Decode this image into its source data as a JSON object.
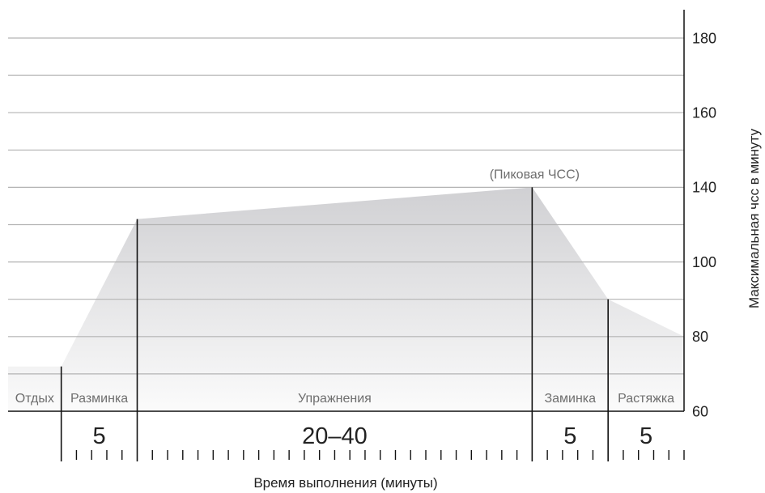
{
  "chart_data": {
    "type": "area",
    "xlabel": "Время выполнения (минуты)",
    "ylabel": "Максимальная чсс в минуту",
    "y_axis_side": "right",
    "y_ticks": [
      60,
      80,
      100,
      140,
      160,
      180
    ],
    "grid": true,
    "phases": [
      {
        "label": "Отдых",
        "minutes": 3.5
      },
      {
        "label": "Разминка",
        "duration_label": "5",
        "minutes": 5
      },
      {
        "label": "Упражнения",
        "duration_label": "20–40",
        "minutes": 26
      },
      {
        "label": "Заминка",
        "duration_label": "5",
        "minutes": 5
      },
      {
        "label": "Растяжка",
        "duration_label": "5",
        "minutes": 5
      }
    ],
    "hr_at_phase_boundaries": [
      72,
      72,
      123,
      140,
      90,
      80
    ],
    "annotation": "(Пиковая ЧСС)"
  },
  "colors": {
    "fill_top": "#d0d0d3",
    "fill_bottom": "#fbfbfb",
    "gridline": "#b3b3b3",
    "line": "#111111",
    "text": "#222222",
    "label_gray": "#6e6e6e"
  }
}
